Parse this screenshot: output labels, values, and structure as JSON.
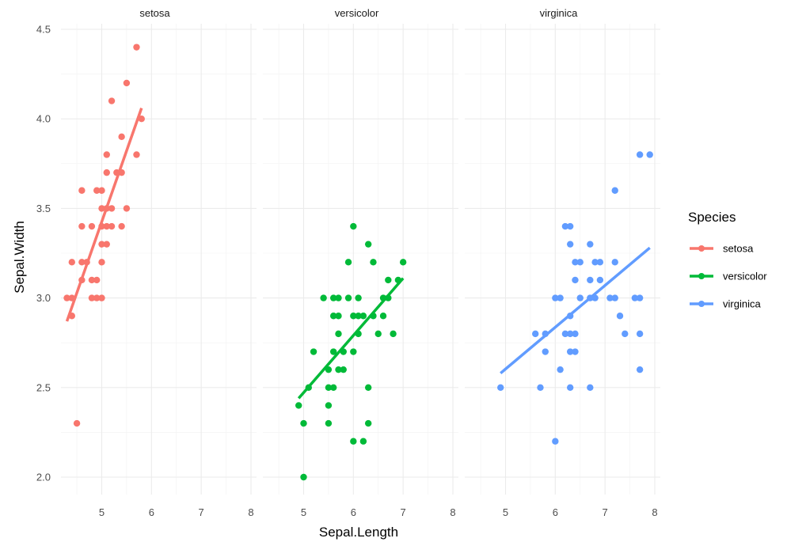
{
  "chart_data": {
    "type": "scatter",
    "facets": [
      "setosa",
      "versicolor",
      "virginica"
    ],
    "xlabel": "Sepal.Length",
    "ylabel": "Sepal.Width",
    "xlim": [
      4.3,
      8.0
    ],
    "ylim": [
      1.9,
      4.5
    ],
    "x_ticks": [
      "5",
      "6",
      "7",
      "8"
    ],
    "y_ticks": [
      "2.0",
      "2.5",
      "3.0",
      "3.5",
      "4.0",
      "4.5"
    ],
    "grid": true,
    "legend": {
      "title": "Species",
      "position": "right",
      "entries": [
        "setosa",
        "versicolor",
        "virginica"
      ]
    },
    "colors": {
      "setosa": "#F8766D",
      "versicolor": "#00BA38",
      "virginica": "#619CFF"
    },
    "series": [
      {
        "name": "setosa",
        "fit": {
          "x0": 4.3,
          "y0": 2.87,
          "x1": 5.8,
          "y1": 4.06
        },
        "points": [
          [
            4.3,
            3.0
          ],
          [
            4.4,
            2.9
          ],
          [
            4.4,
            3.0
          ],
          [
            4.4,
            3.2
          ],
          [
            4.5,
            2.3
          ],
          [
            4.6,
            3.1
          ],
          [
            4.6,
            3.2
          ],
          [
            4.6,
            3.4
          ],
          [
            4.6,
            3.6
          ],
          [
            4.7,
            3.2
          ],
          [
            4.8,
            3.0
          ],
          [
            4.8,
            3.1
          ],
          [
            4.8,
            3.4
          ],
          [
            4.9,
            3.0
          ],
          [
            4.9,
            3.1
          ],
          [
            4.9,
            3.6
          ],
          [
            5.0,
            3.0
          ],
          [
            5.0,
            3.2
          ],
          [
            5.0,
            3.3
          ],
          [
            5.0,
            3.4
          ],
          [
            5.0,
            3.5
          ],
          [
            5.0,
            3.6
          ],
          [
            5.1,
            3.3
          ],
          [
            5.1,
            3.4
          ],
          [
            5.1,
            3.5
          ],
          [
            5.1,
            3.7
          ],
          [
            5.1,
            3.8
          ],
          [
            5.2,
            3.4
          ],
          [
            5.2,
            3.5
          ],
          [
            5.2,
            4.1
          ],
          [
            5.3,
            3.7
          ],
          [
            5.4,
            3.4
          ],
          [
            5.4,
            3.7
          ],
          [
            5.4,
            3.9
          ],
          [
            5.5,
            3.5
          ],
          [
            5.5,
            4.2
          ],
          [
            5.7,
            3.8
          ],
          [
            5.7,
            4.4
          ],
          [
            5.8,
            4.0
          ]
        ]
      },
      {
        "name": "versicolor",
        "fit": {
          "x0": 4.9,
          "y0": 2.44,
          "x1": 7.0,
          "y1": 3.11
        },
        "points": [
          [
            4.9,
            2.4
          ],
          [
            5.0,
            2.0
          ],
          [
            5.0,
            2.3
          ],
          [
            5.1,
            2.5
          ],
          [
            5.2,
            2.7
          ],
          [
            5.4,
            3.0
          ],
          [
            5.5,
            2.3
          ],
          [
            5.5,
            2.4
          ],
          [
            5.5,
            2.5
          ],
          [
            5.5,
            2.6
          ],
          [
            5.6,
            2.5
          ],
          [
            5.6,
            2.7
          ],
          [
            5.6,
            2.9
          ],
          [
            5.6,
            3.0
          ],
          [
            5.7,
            2.6
          ],
          [
            5.7,
            2.8
          ],
          [
            5.7,
            2.9
          ],
          [
            5.7,
            3.0
          ],
          [
            5.8,
            2.6
          ],
          [
            5.8,
            2.7
          ],
          [
            5.9,
            3.0
          ],
          [
            5.9,
            3.2
          ],
          [
            6.0,
            2.2
          ],
          [
            6.0,
            2.7
          ],
          [
            6.0,
            2.9
          ],
          [
            6.0,
            3.4
          ],
          [
            6.1,
            2.8
          ],
          [
            6.1,
            2.9
          ],
          [
            6.1,
            3.0
          ],
          [
            6.2,
            2.2
          ],
          [
            6.2,
            2.9
          ],
          [
            6.3,
            2.3
          ],
          [
            6.3,
            2.5
          ],
          [
            6.3,
            3.3
          ],
          [
            6.4,
            2.9
          ],
          [
            6.4,
            3.2
          ],
          [
            6.5,
            2.8
          ],
          [
            6.6,
            2.9
          ],
          [
            6.6,
            3.0
          ],
          [
            6.7,
            3.0
          ],
          [
            6.7,
            3.1
          ],
          [
            6.8,
            2.8
          ],
          [
            6.9,
            3.1
          ],
          [
            7.0,
            3.2
          ]
        ]
      },
      {
        "name": "virginica",
        "fit": {
          "x0": 4.9,
          "y0": 2.58,
          "x1": 7.9,
          "y1": 3.28
        },
        "points": [
          [
            4.9,
            2.5
          ],
          [
            5.6,
            2.8
          ],
          [
            5.7,
            2.5
          ],
          [
            5.8,
            2.7
          ],
          [
            5.8,
            2.8
          ],
          [
            6.0,
            2.2
          ],
          [
            6.0,
            3.0
          ],
          [
            6.1,
            2.6
          ],
          [
            6.1,
            3.0
          ],
          [
            6.2,
            2.8
          ],
          [
            6.2,
            3.4
          ],
          [
            6.3,
            2.5
          ],
          [
            6.3,
            2.7
          ],
          [
            6.3,
            2.8
          ],
          [
            6.3,
            2.9
          ],
          [
            6.3,
            3.3
          ],
          [
            6.3,
            3.4
          ],
          [
            6.4,
            2.7
          ],
          [
            6.4,
            2.8
          ],
          [
            6.4,
            3.1
          ],
          [
            6.4,
            3.2
          ],
          [
            6.5,
            3.0
          ],
          [
            6.5,
            3.2
          ],
          [
            6.7,
            2.5
          ],
          [
            6.7,
            3.0
          ],
          [
            6.7,
            3.1
          ],
          [
            6.7,
            3.3
          ],
          [
            6.8,
            3.0
          ],
          [
            6.8,
            3.2
          ],
          [
            6.9,
            3.1
          ],
          [
            6.9,
            3.2
          ],
          [
            7.1,
            3.0
          ],
          [
            7.2,
            3.0
          ],
          [
            7.2,
            3.2
          ],
          [
            7.2,
            3.6
          ],
          [
            7.3,
            2.9
          ],
          [
            7.4,
            2.8
          ],
          [
            7.6,
            3.0
          ],
          [
            7.7,
            2.6
          ],
          [
            7.7,
            2.8
          ],
          [
            7.7,
            3.0
          ],
          [
            7.7,
            3.8
          ],
          [
            7.9,
            3.8
          ]
        ]
      }
    ]
  }
}
